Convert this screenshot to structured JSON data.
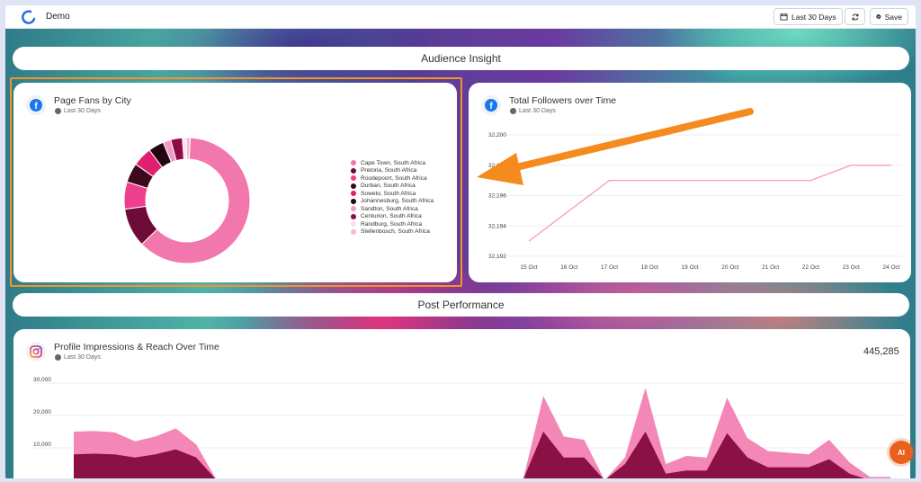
{
  "app": {
    "name": "Demo"
  },
  "toolbar": {
    "date_range_label": "Last 30 Days",
    "save_label": "Save"
  },
  "sections": [
    {
      "title": "Audience Insight"
    },
    {
      "title": "Post Performance"
    }
  ],
  "cards": {
    "fans_by_city": {
      "title": "Page Fans by City",
      "subtitle": "Last 30 Days",
      "icon": "facebook-icon"
    },
    "followers": {
      "title": "Total Followers over Time",
      "subtitle": "Last 30 Days",
      "icon": "facebook-icon"
    },
    "impressions": {
      "title": "Profile Impressions & Reach Over Time",
      "subtitle": "Last 30 Days",
      "icon": "instagram-icon",
      "total": "445,285"
    }
  },
  "chart_data": [
    {
      "type": "pie",
      "title": "Page Fans by City",
      "categories": [
        "Cape Town, South Africa",
        "Pretoria, South Africa",
        "Roodepoort, South Africa",
        "Durban, South Africa",
        "Soweto, South Africa",
        "Johannesburg, South Africa",
        "Sandton, South Africa",
        "Centurion, South Africa",
        "Randburg, South Africa",
        "Stellenbosch, South Africa"
      ],
      "values": [
        62,
        10,
        7,
        5,
        5,
        4,
        2,
        3,
        1,
        1
      ],
      "colors": [
        "#f277ac",
        "#6e0a37",
        "#f03e8e",
        "#3c0a1c",
        "#e0206f",
        "#240611",
        "#f29ac5",
        "#8f0b45",
        "#fde0ee",
        "#f7b8d5"
      ],
      "legend": "right"
    },
    {
      "type": "line",
      "title": "Total Followers over Time",
      "x": [
        "15 Oct",
        "16 Oct",
        "17 Oct",
        "18 Oct",
        "19 Oct",
        "20 Oct",
        "21 Oct",
        "22 Oct",
        "23 Oct",
        "24 Oct"
      ],
      "y_ticks": [
        "32,192",
        "32,194",
        "32,196",
        "32,198",
        "32,200"
      ],
      "series": [
        {
          "values": [
            32193,
            32195,
            32197,
            32197,
            32197,
            32197,
            32197,
            32197,
            32198,
            32198
          ]
        }
      ],
      "ylim": [
        32192,
        32200
      ],
      "color": "#f59ab8"
    },
    {
      "type": "area",
      "title": "Profile Impressions & Reach Over Time",
      "y_ticks": [
        "10,000",
        "20,000",
        "30,000"
      ],
      "series": [
        {
          "values": [
            15000,
            15200,
            14800,
            12000,
            13500,
            16000,
            11000,
            0,
            0,
            0,
            0,
            0,
            0,
            0,
            0,
            0,
            0,
            0,
            0,
            0,
            0,
            0,
            0,
            26000,
            13500,
            12500,
            0,
            7000,
            28500,
            5000,
            7500,
            7000,
            25500,
            13000,
            9000,
            8500,
            8000,
            12500,
            5500,
            1000,
            1000
          ],
          "color": "#f387b7"
        },
        {
          "values": [
            8000,
            8200,
            8000,
            7000,
            8000,
            9500,
            7000,
            0,
            0,
            0,
            0,
            0,
            0,
            0,
            0,
            0,
            0,
            0,
            0,
            0,
            0,
            0,
            0,
            15000,
            7000,
            7000,
            0,
            5000,
            15000,
            2000,
            3000,
            3000,
            14500,
            7000,
            4000,
            4000,
            4000,
            6500,
            2000,
            0,
            0
          ],
          "color": "#8b1043"
        }
      ],
      "ylim": [
        0,
        30000
      ]
    }
  ]
}
